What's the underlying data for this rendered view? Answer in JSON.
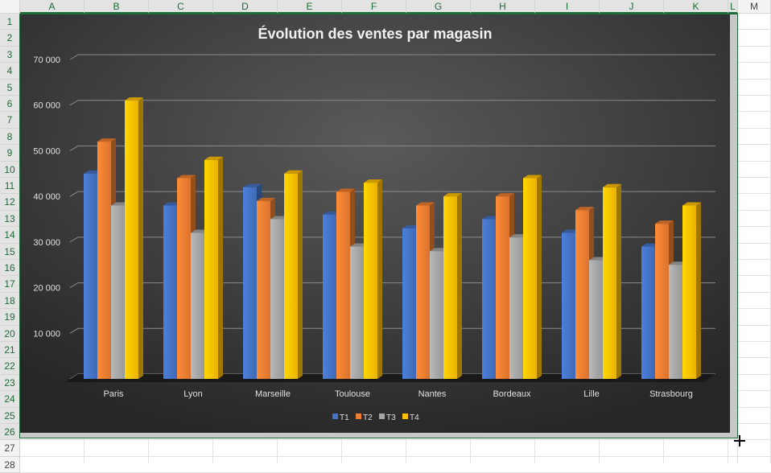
{
  "spreadsheet": {
    "columns": [
      "A",
      "B",
      "C",
      "D",
      "E",
      "F",
      "G",
      "H",
      "I",
      "J",
      "K",
      "L",
      "M"
    ],
    "rows": [
      "1",
      "2",
      "3",
      "4",
      "5",
      "6",
      "7",
      "8",
      "9",
      "10",
      "11",
      "12",
      "13",
      "14",
      "15",
      "16",
      "17",
      "18",
      "19",
      "20",
      "21",
      "22",
      "23",
      "24",
      "25",
      "26",
      "27",
      "28"
    ]
  },
  "chart_data": {
    "type": "bar",
    "variant": "3d-clustered-column",
    "title": "Évolution des ventes par magasin",
    "categories": [
      "Paris",
      "Lyon",
      "Marseille",
      "Toulouse",
      "Nantes",
      "Bordeaux",
      "Lille",
      "Strasbourg"
    ],
    "series": [
      {
        "name": "T1",
        "color": "#4472c4",
        "values": [
          45000,
          38000,
          42000,
          36000,
          33000,
          35000,
          32000,
          29000
        ]
      },
      {
        "name": "T2",
        "color": "#ed7d31",
        "values": [
          52000,
          44000,
          39000,
          41000,
          38000,
          40000,
          37000,
          34000
        ]
      },
      {
        "name": "T3",
        "color": "#a5a5a5",
        "values": [
          38000,
          32000,
          35000,
          29000,
          28000,
          31000,
          26000,
          25000
        ]
      },
      {
        "name": "T4",
        "color": "#ffc000",
        "values": [
          61000,
          48000,
          45000,
          43000,
          40000,
          44000,
          42000,
          38000
        ]
      }
    ],
    "ylim": [
      0,
      70000
    ],
    "yticks": [
      "",
      "10 000",
      "20 000",
      "30 000",
      "40 000",
      "50 000",
      "60 000",
      "70 000"
    ],
    "grid": true,
    "legend": "bottom",
    "background": "dark-gradient"
  }
}
